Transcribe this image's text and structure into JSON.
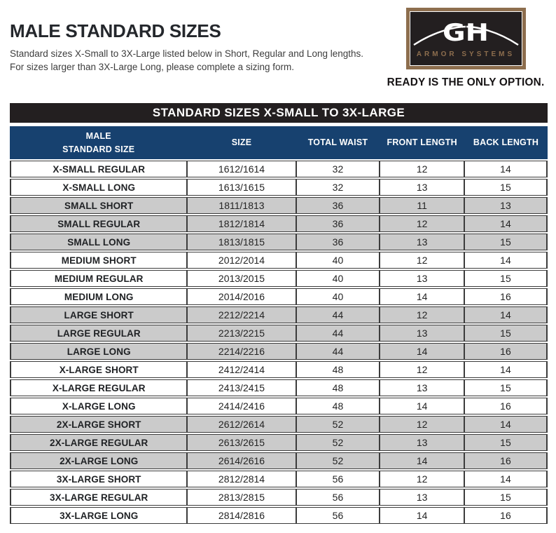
{
  "page": {
    "title": "MALE STANDARD SIZES",
    "intro_lines": [
      "Standard sizes X-Small to 3X-Large listed below in Short, Regular and Long lengths.",
      "For sizes larger than 3X-Large Long, please complete a sizing form."
    ],
    "banner": "STANDARD SIZES X-SMALL TO 3X-LARGE"
  },
  "logo": {
    "monogram": "GH",
    "company": "ARMOR SYSTEMS",
    "tagline": "READY IS THE ONLY OPTION.",
    "border_color": "#8d6e4e",
    "background_color": "#231f20",
    "company_text_color": "#8d6e4e"
  },
  "colors": {
    "table_header_bg": "#17416f",
    "banner_bg": "#231f20",
    "shaded_row_bg": "#cbcbcb",
    "cell_border": "#3c3c3c",
    "title_text": "#24272c"
  },
  "table": {
    "header_main_line1": "MALE",
    "header_main_line2": "STANDARD SIZE",
    "headers": [
      "SIZE",
      "TOTAL WAIST",
      "FRONT LENGTH",
      "BACK LENGTH"
    ],
    "row_keys": [
      "label",
      "size",
      "waist",
      "front",
      "back"
    ],
    "rows": [
      {
        "label": "X-SMALL REGULAR",
        "size": "1612/1614",
        "waist": "32",
        "front": "12",
        "back": "14",
        "shaded": false
      },
      {
        "label": "X-SMALL LONG",
        "size": "1613/1615",
        "waist": "32",
        "front": "13",
        "back": "15",
        "shaded": false
      },
      {
        "label": "SMALL SHORT",
        "size": "1811/1813",
        "waist": "36",
        "front": "11",
        "back": "13",
        "shaded": true
      },
      {
        "label": "SMALL REGULAR",
        "size": "1812/1814",
        "waist": "36",
        "front": "12",
        "back": "14",
        "shaded": true
      },
      {
        "label": "SMALL LONG",
        "size": "1813/1815",
        "waist": "36",
        "front": "13",
        "back": "15",
        "shaded": true
      },
      {
        "label": "MEDIUM SHORT",
        "size": "2012/2014",
        "waist": "40",
        "front": "12",
        "back": "14",
        "shaded": false
      },
      {
        "label": "MEDIUM REGULAR",
        "size": "2013/2015",
        "waist": "40",
        "front": "13",
        "back": "15",
        "shaded": false
      },
      {
        "label": "MEDIUM LONG",
        "size": "2014/2016",
        "waist": "40",
        "front": "14",
        "back": "16",
        "shaded": false
      },
      {
        "label": "LARGE SHORT",
        "size": "2212/2214",
        "waist": "44",
        "front": "12",
        "back": "14",
        "shaded": true
      },
      {
        "label": "LARGE REGULAR",
        "size": "2213/2215",
        "waist": "44",
        "front": "13",
        "back": "15",
        "shaded": true
      },
      {
        "label": "LARGE LONG",
        "size": "2214/2216",
        "waist": "44",
        "front": "14",
        "back": "16",
        "shaded": true
      },
      {
        "label": "X-LARGE SHORT",
        "size": "2412/2414",
        "waist": "48",
        "front": "12",
        "back": "14",
        "shaded": false
      },
      {
        "label": "X-LARGE REGULAR",
        "size": "2413/2415",
        "waist": "48",
        "front": "13",
        "back": "15",
        "shaded": false
      },
      {
        "label": "X-LARGE LONG",
        "size": "2414/2416",
        "waist": "48",
        "front": "14",
        "back": "16",
        "shaded": false
      },
      {
        "label": "2X-LARGE SHORT",
        "size": "2612/2614",
        "waist": "52",
        "front": "12",
        "back": "14",
        "shaded": true
      },
      {
        "label": "2X-LARGE REGULAR",
        "size": "2613/2615",
        "waist": "52",
        "front": "13",
        "back": "15",
        "shaded": true
      },
      {
        "label": "2X-LARGE LONG",
        "size": "2614/2616",
        "waist": "52",
        "front": "14",
        "back": "16",
        "shaded": true
      },
      {
        "label": "3X-LARGE SHORT",
        "size": "2812/2814",
        "waist": "56",
        "front": "12",
        "back": "14",
        "shaded": false
      },
      {
        "label": "3X-LARGE REGULAR",
        "size": "2813/2815",
        "waist": "56",
        "front": "13",
        "back": "15",
        "shaded": false
      },
      {
        "label": "3X-LARGE LONG",
        "size": "2814/2816",
        "waist": "56",
        "front": "14",
        "back": "16",
        "shaded": false
      }
    ]
  }
}
